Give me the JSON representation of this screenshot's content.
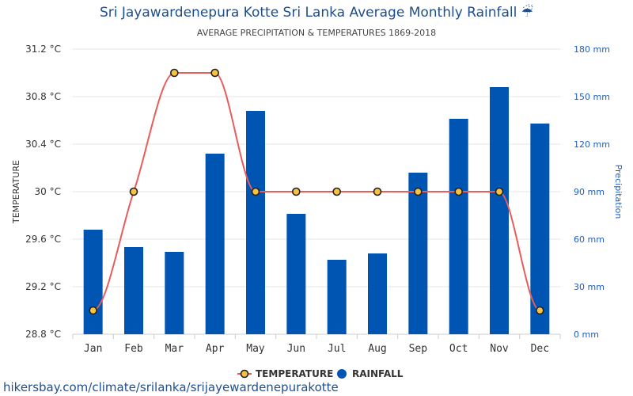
{
  "title": "Sri Jayawardenepura Kotte Sri Lanka Average Monthly Rainfall ☔",
  "subtitle": "AVERAGE PRECIPITATION & TEMPERATURES 1869-2018",
  "source": "hikersbay.com/climate/srilanka/srijayewardenepurakotte",
  "colors": {
    "bar": "#0055b3",
    "line": "#e85c5c",
    "marker_fill": "#f5c242",
    "marker_stroke": "#222222"
  },
  "chart_data": {
    "type": "bar",
    "categories": [
      "Jan",
      "Feb",
      "Mar",
      "Apr",
      "May",
      "Jun",
      "Jul",
      "Aug",
      "Sep",
      "Oct",
      "Nov",
      "Dec"
    ],
    "series": [
      {
        "name": "RAINFALL",
        "type": "bar",
        "axis": "right",
        "values": [
          66,
          55,
          52,
          114,
          141,
          76,
          47,
          51,
          102,
          136,
          156,
          133
        ]
      },
      {
        "name": "TEMPERATURE",
        "type": "line",
        "axis": "left",
        "values": [
          29.0,
          30.0,
          31.0,
          31.0,
          30.0,
          30.0,
          30.0,
          30.0,
          30.0,
          30.0,
          30.0,
          29.0
        ]
      }
    ],
    "ylabel": "TEMPERATURE",
    "y2label": "Precipitation",
    "ylim": [
      28.8,
      31.2
    ],
    "y2lim": [
      0,
      180
    ],
    "yticks": [
      "28.8 °C",
      "29.2 °C",
      "29.6 °C",
      "30 °C",
      "30.4 °C",
      "30.8 °C",
      "31.2 °C"
    ],
    "y2ticks": [
      "0 mm",
      "30 mm",
      "60 mm",
      "90 mm",
      "120 mm",
      "150 mm",
      "180 mm"
    ],
    "grid": true,
    "legend": [
      "TEMPERATURE",
      "RAINFALL"
    ],
    "legend_position": "bottom-center"
  }
}
